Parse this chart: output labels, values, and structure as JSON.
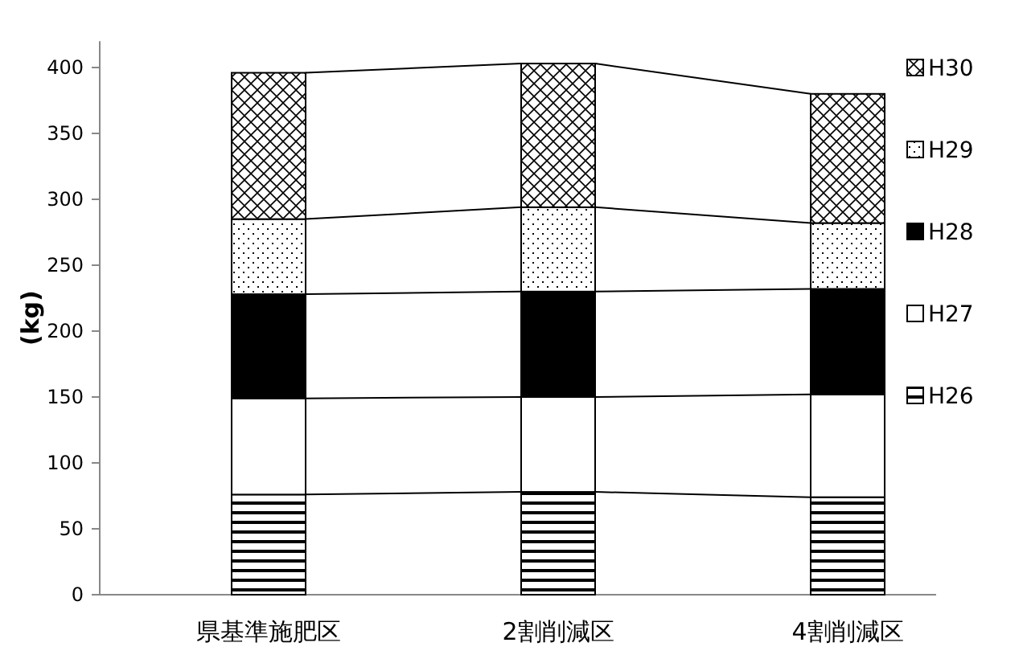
{
  "chart_data": {
    "type": "bar",
    "stacked": true,
    "ylabel": "(kg)",
    "categories": [
      "県基準施肥区",
      "2割削減区",
      "4割削減区"
    ],
    "series": [
      {
        "name": "H26",
        "color": "#000000",
        "values": [
          76,
          78,
          74
        ]
      },
      {
        "name": "H27",
        "color": "#ffffff",
        "values": [
          73,
          72,
          78
        ]
      },
      {
        "name": "H28",
        "color": "#000000",
        "values": [
          79,
          80,
          80
        ]
      },
      {
        "name": "H29",
        "color": "#000000",
        "values": [
          57,
          64,
          50
        ]
      },
      {
        "name": "H30",
        "color": "#000000",
        "values": [
          111,
          109,
          98
        ]
      }
    ],
    "ylim": [
      0,
      420
    ],
    "yticks": [
      0,
      50,
      100,
      150,
      200,
      250,
      300,
      350,
      400
    ],
    "legend": "right",
    "grid": false
  }
}
